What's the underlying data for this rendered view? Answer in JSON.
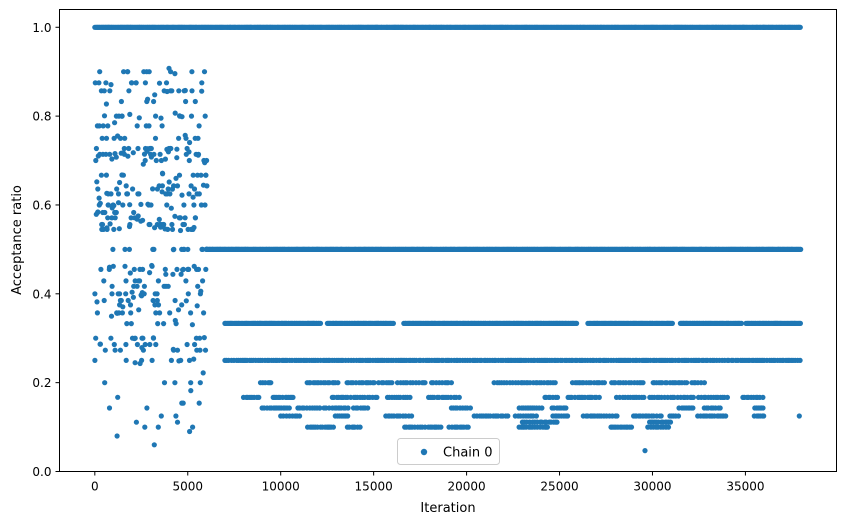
{
  "chart_data": {
    "type": "scatter",
    "xlabel": "Iteration",
    "ylabel": "Acceptance ratio",
    "xlim": [
      -1900,
      39900
    ],
    "ylim": [
      0.0,
      1.04
    ],
    "xticks": [
      0,
      5000,
      10000,
      15000,
      20000,
      25000,
      30000,
      35000
    ],
    "xtick_labels": [
      "0",
      "5000",
      "10000",
      "15000",
      "20000",
      "25000",
      "30000",
      "35000"
    ],
    "yticks": [
      0.0,
      0.2,
      0.4,
      0.6,
      0.8,
      1.0
    ],
    "ytick_labels": [
      "0.0",
      "0.2",
      "0.4",
      "0.6",
      "0.8",
      "1.0"
    ],
    "grid": false,
    "legend_position": "bottom-center",
    "series": [
      {
        "name": "Chain 0",
        "color": "#1f77b4",
        "marker": "circle",
        "bands": [
          {
            "y": 1.0,
            "x_range": [
              0,
              38000
            ],
            "density": "continuous"
          },
          {
            "y": 0.5,
            "x_range": [
              6000,
              38000
            ],
            "density": "continuous"
          },
          {
            "y": 0.3333,
            "x_range": [
              7000,
              38000
            ],
            "density": "dense",
            "gaps": [
              [
                12200,
                12500
              ],
              [
                16100,
                16600
              ],
              [
                26000,
                26500
              ],
              [
                31100,
                31500
              ],
              [
                34800,
                35000
              ]
            ]
          },
          {
            "y": 0.25,
            "x_range": [
              7000,
              38000
            ],
            "density": "medium"
          },
          {
            "y": 0.2,
            "x_range": [
              7500,
              38000
            ],
            "density": "sparse"
          },
          {
            "y": 0.1667,
            "x_range": [
              8000,
              36500
            ],
            "density": "sparse"
          },
          {
            "y": 0.1429,
            "x_range": [
              9000,
              36000
            ],
            "density": "sparse"
          },
          {
            "y": 0.125,
            "x_range": [
              10000,
              36000
            ],
            "density": "sparse"
          },
          {
            "y": 0.1111,
            "x_range": [
              23000,
              31000
            ],
            "density": "sparse"
          },
          {
            "y": 0.1,
            "x_range": [
              10000,
              31000
            ],
            "density": "sparse"
          }
        ],
        "burn_in": {
          "x_range": [
            0,
            6000
          ],
          "upper_cluster_range": [
            0.52,
            0.94
          ],
          "lower_cluster_range": [
            0.06,
            0.47
          ],
          "discrete_levels": [
            0.9,
            0.875,
            0.857,
            0.833,
            0.8,
            0.778,
            0.75,
            0.727,
            0.714,
            0.7,
            0.667,
            0.643,
            0.636,
            0.625,
            0.6,
            0.583,
            0.571,
            0.556,
            0.545,
            0.5,
            0.462,
            0.455,
            0.444,
            0.429,
            0.417,
            0.4,
            0.385,
            0.375,
            0.364,
            0.357,
            0.333,
            0.3,
            0.286,
            0.273,
            0.25,
            0.222,
            0.2,
            0.182,
            0.167,
            0.154,
            0.143,
            0.125,
            0.111,
            0.1
          ]
        },
        "isolated_points": [
          {
            "x": 29600,
            "y": 0.047
          },
          {
            "x": 37900,
            "y": 0.125
          },
          {
            "x": 12100,
            "y": 0.143
          },
          {
            "x": 3200,
            "y": 0.06
          },
          {
            "x": 1200,
            "y": 0.08
          },
          {
            "x": 5100,
            "y": 0.09
          }
        ]
      }
    ]
  }
}
